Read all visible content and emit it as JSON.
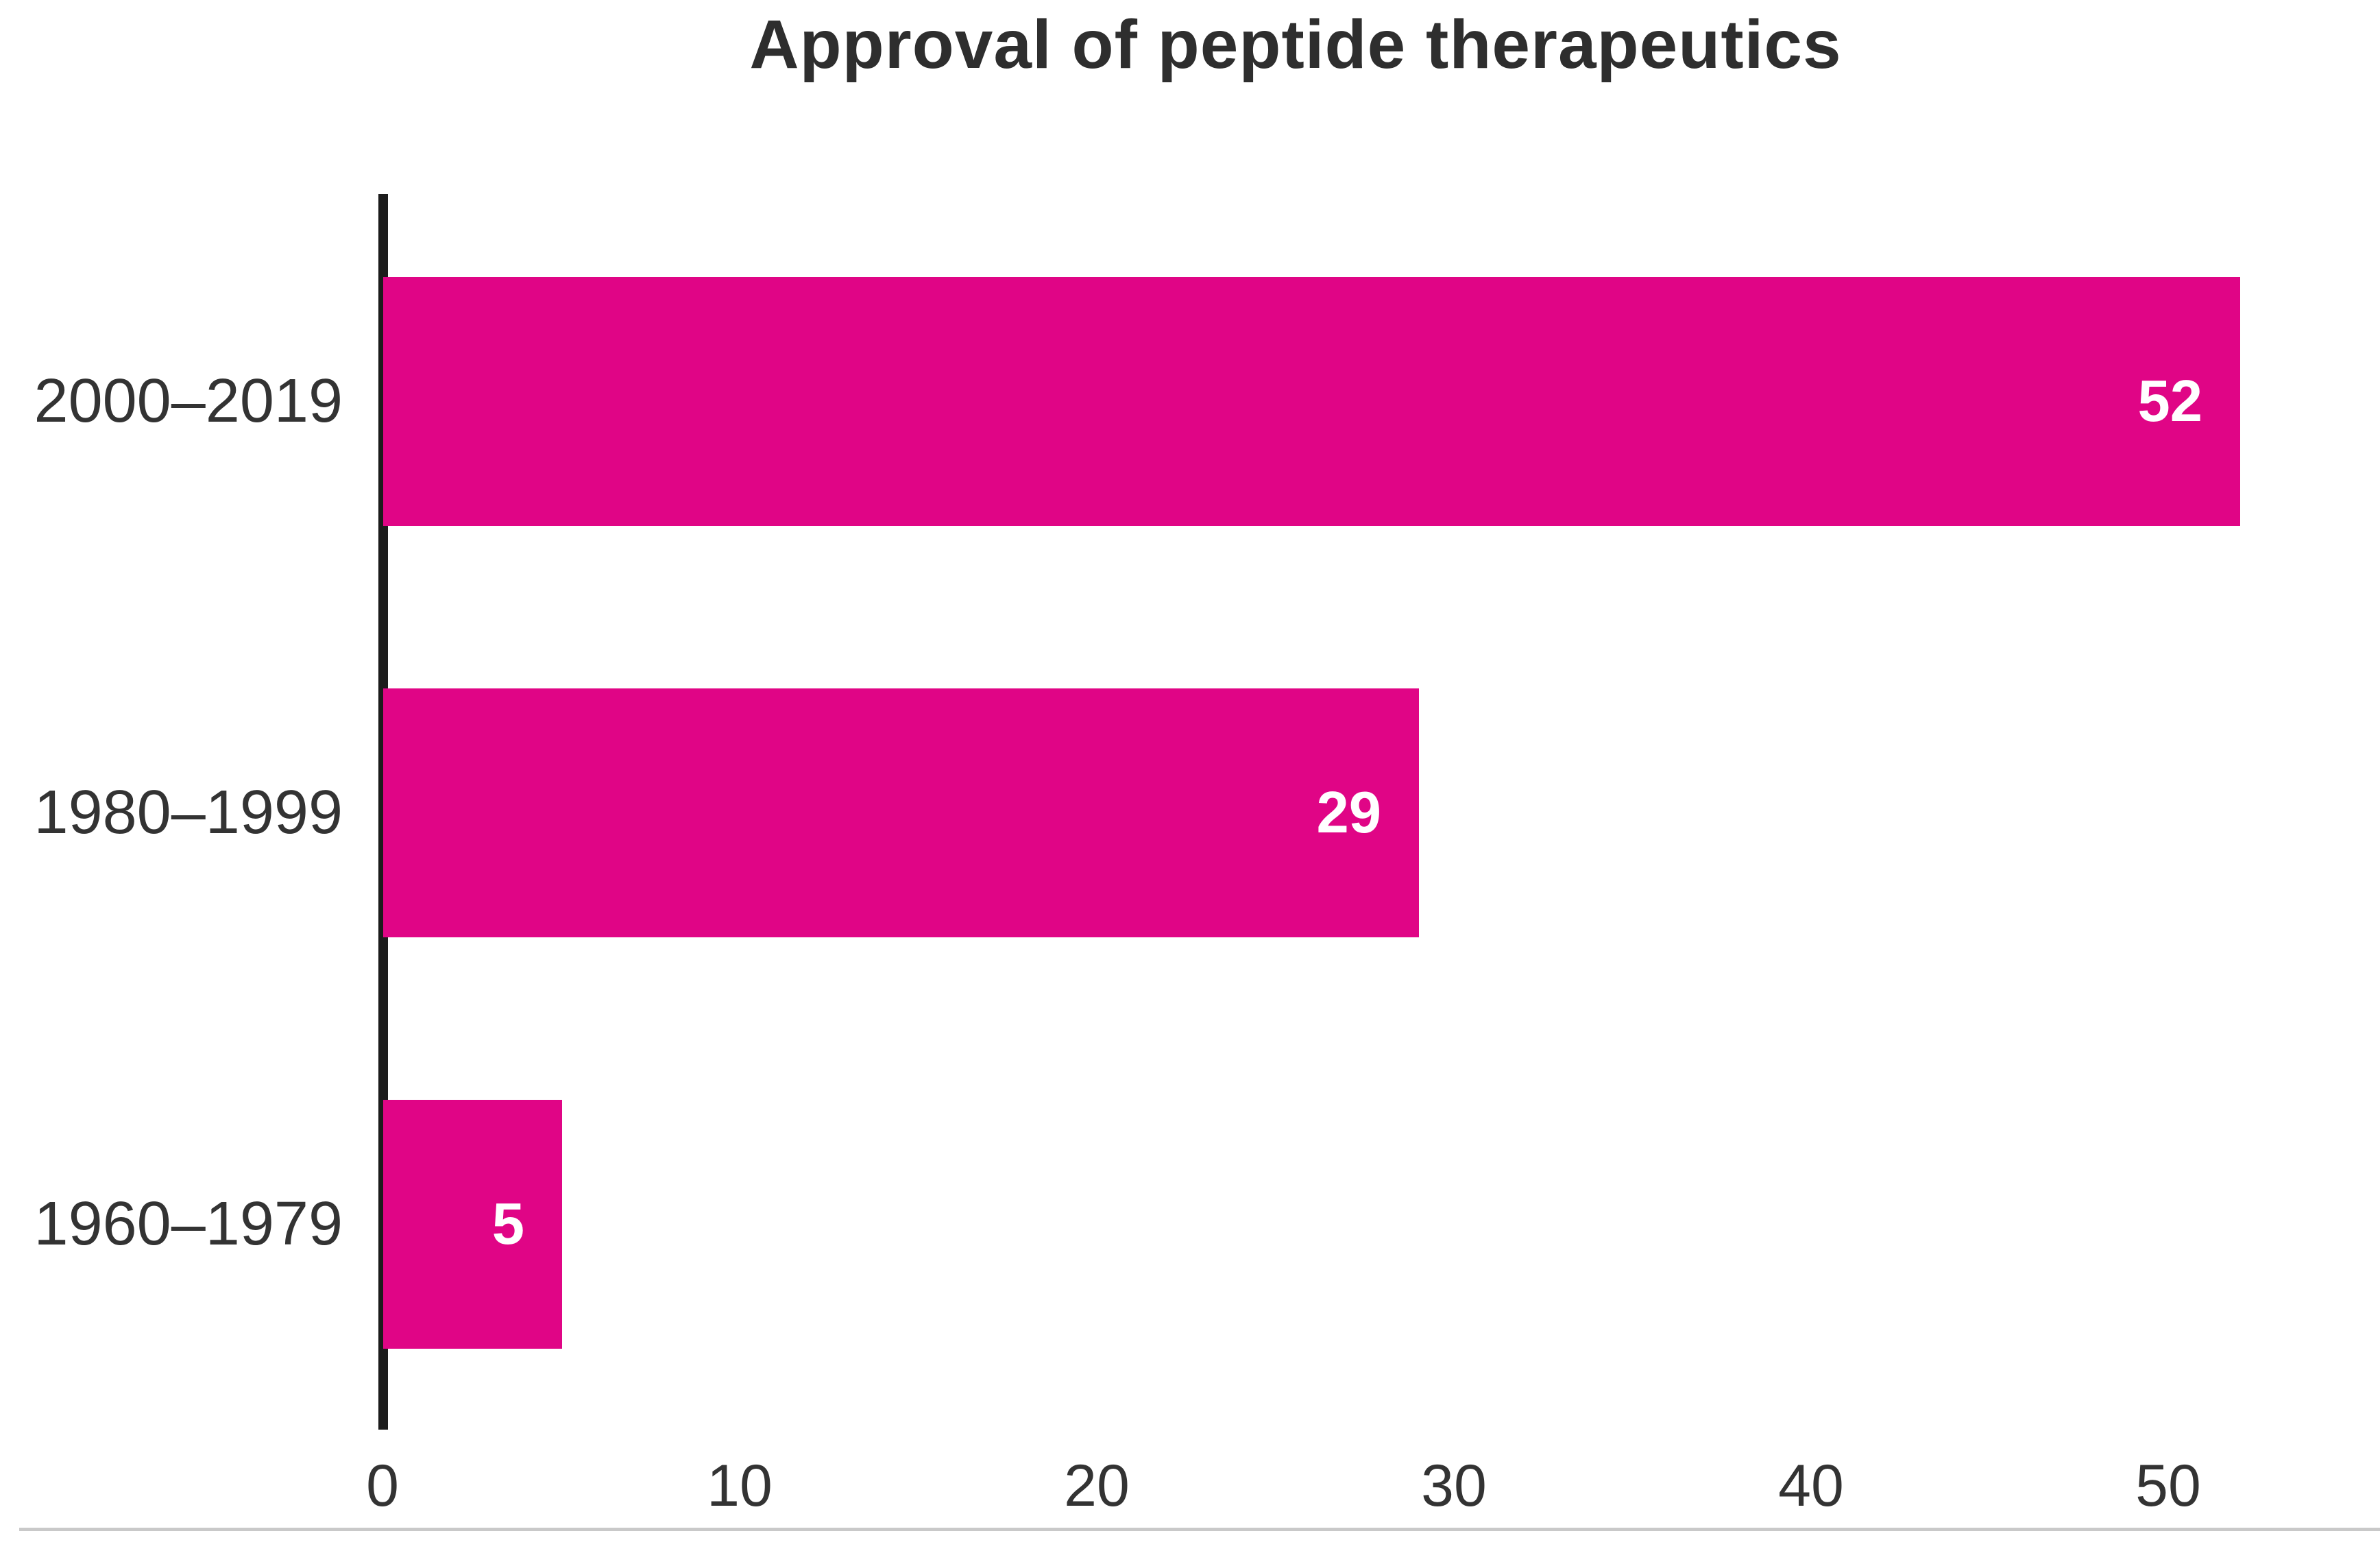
{
  "page": {
    "background_color": "#ffffff"
  },
  "chart_data": {
    "type": "bar",
    "orientation": "horizontal",
    "title": "Approval of peptide therapeutics",
    "categories": [
      "2000–2019",
      "1980–1999",
      "1960–1979"
    ],
    "values": [
      52,
      29,
      5
    ],
    "value_labels": [
      "52",
      "29",
      "5"
    ],
    "x_ticks": [
      "0",
      "10",
      "20",
      "30",
      "40",
      "50"
    ],
    "x_tick_values": [
      0,
      10,
      20,
      30,
      40,
      50
    ],
    "xlim": [
      0,
      55
    ],
    "xlabel": "",
    "ylabel": "",
    "grid": false,
    "legend": false,
    "bar_color": "#e00586",
    "value_label_color": "#ffffff",
    "title_color": "#2e2e2e",
    "tick_label_color": "#333333",
    "category_label_color": "#333333",
    "axis_line_color": "#1c1c1c",
    "bottom_divider_color": "#c9c9c9"
  }
}
